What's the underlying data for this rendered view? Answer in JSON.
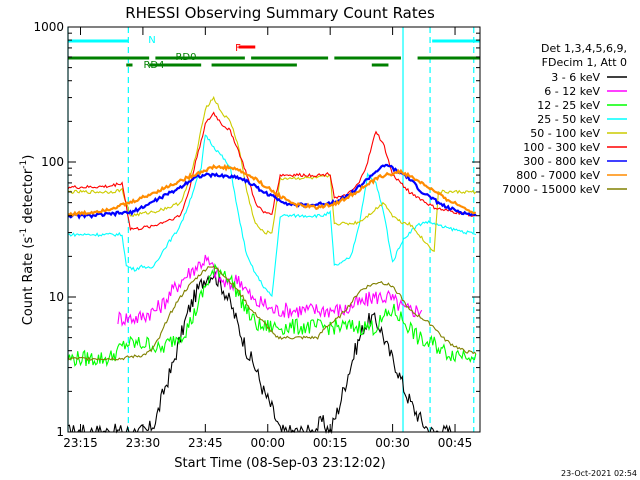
{
  "chart_data": {
    "type": "line",
    "title": "RHESSI Observing Summary Count Rates",
    "xlabel": "Start Time (08-Sep-03 23:12:02)",
    "ylabel_main": "Count Rate (s",
    "ylabel_sup1": "-1",
    "ylabel_mid": " detector",
    "ylabel_sup2": "-1",
    "ylabel_end": ")",
    "y_scale": "log",
    "ylim": [
      1,
      1000
    ],
    "xlim_minutes": [
      0,
      99
    ],
    "x_ticks": [
      {
        "t": 3,
        "label": "23:15"
      },
      {
        "t": 18,
        "label": "23:30"
      },
      {
        "t": 33,
        "label": "23:45"
      },
      {
        "t": 48,
        "label": "00:00"
      },
      {
        "t": 63,
        "label": "00:15"
      },
      {
        "t": 78,
        "label": "00:30"
      },
      {
        "t": 93,
        "label": "00:45"
      }
    ],
    "y_ticks": [
      {
        "v": 1,
        "label": "1"
      },
      {
        "v": 10,
        "label": "10"
      },
      {
        "v": 100,
        "label": "100"
      },
      {
        "v": 1000,
        "label": "1000"
      }
    ],
    "legend_header": [
      "Det 1,3,4,5,6,9,",
      "FDecim 1, Att 0"
    ],
    "legend_position": "right",
    "footer_date": "23-Oct-2021 02:54",
    "series": [
      {
        "name": "3 - 6 keV",
        "color": "#000000",
        "x": [
          0,
          19,
          21,
          23,
          25,
          27,
          29,
          31,
          33,
          35,
          37,
          39,
          41,
          43,
          45,
          47,
          49,
          51,
          53,
          55,
          57,
          59,
          61,
          63,
          65,
          67,
          69,
          71,
          73,
          75,
          77,
          79,
          81,
          83,
          85,
          87,
          89,
          91,
          92
        ],
        "y": [
          1,
          1,
          1.2,
          2,
          3,
          5,
          8,
          11,
          14,
          15,
          12,
          9,
          6,
          4,
          3,
          2,
          1.5,
          1,
          1,
          1,
          1,
          1,
          1.2,
          1,
          1.5,
          2.5,
          4,
          6,
          7,
          6,
          4,
          3,
          2,
          1.5,
          1.2,
          1,
          1,
          1,
          1
        ]
      },
      {
        "name": "6 - 12 keV",
        "color": "#ff00ff",
        "x": [
          12,
          13,
          15,
          17,
          19,
          21,
          23,
          25,
          27,
          29,
          31,
          33,
          35,
          37,
          39,
          41,
          43,
          45,
          47,
          49,
          51,
          53,
          55,
          57,
          59,
          61,
          63,
          65,
          67,
          69,
          71,
          73,
          75,
          77,
          79,
          81,
          83,
          85
        ],
        "y": [
          7,
          7,
          7,
          7,
          7.5,
          8,
          9,
          11,
          13,
          15,
          17,
          19,
          16,
          13,
          12,
          14,
          11,
          9,
          9,
          8,
          8,
          8,
          8,
          8,
          8,
          8,
          8,
          8,
          8,
          9,
          9,
          10,
          10,
          10,
          9,
          8,
          8,
          8
        ]
      },
      {
        "name": "12 - 25 keV",
        "color": "#00ff00",
        "x": [
          0,
          2,
          4,
          6,
          8,
          10,
          12,
          14,
          16,
          18,
          20,
          22,
          24,
          26,
          28,
          30,
          32,
          34,
          36,
          38,
          40,
          42,
          44,
          46,
          48,
          50,
          52,
          54,
          56,
          58,
          60,
          62,
          64,
          66,
          68,
          70,
          72,
          74,
          76,
          78,
          80,
          82,
          84,
          86,
          88,
          90,
          92,
          94,
          96,
          98
        ],
        "y": [
          3.5,
          3.5,
          3.5,
          3.5,
          3.5,
          3.5,
          4,
          4.5,
          4.5,
          4.5,
          4.5,
          4,
          4.5,
          5,
          5.5,
          7,
          10,
          14,
          16,
          15,
          12,
          9,
          7,
          6,
          6,
          6,
          6,
          6,
          6,
          6,
          6,
          6,
          6,
          6,
          6,
          6,
          6,
          6,
          7,
          8,
          7,
          6,
          5,
          4.5,
          4.5,
          4,
          3.8,
          3.8,
          3.8,
          3.8
        ]
      },
      {
        "name": "25 - 50 keV",
        "color": "#00ffff",
        "x": [
          0,
          5,
          10,
          13,
          14,
          16,
          18,
          20,
          22,
          24,
          26,
          28,
          30,
          32,
          33,
          35,
          37,
          39,
          41,
          43,
          45,
          47,
          49,
          51,
          53,
          55,
          57,
          59,
          61,
          63,
          64,
          66,
          68,
          70,
          72,
          74,
          76,
          78,
          80,
          82,
          84,
          86,
          88,
          90,
          92,
          94,
          96,
          98
        ],
        "y": [
          29,
          29,
          29,
          29,
          17,
          16,
          17,
          16,
          20,
          25,
          30,
          40,
          60,
          90,
          160,
          130,
          110,
          90,
          40,
          20,
          15,
          12,
          10,
          40,
          40,
          40,
          40,
          40,
          40,
          42,
          17,
          18,
          20,
          35,
          80,
          70,
          40,
          18,
          25,
          30,
          34,
          36,
          35,
          33,
          32,
          31,
          30,
          29
        ]
      },
      {
        "name": "50 - 100 keV",
        "color": "#cccc00",
        "x": [
          0,
          5,
          10,
          13,
          15,
          17,
          19,
          21,
          23,
          25,
          27,
          29,
          31,
          33,
          35,
          37,
          39,
          41,
          43,
          45,
          47,
          49,
          51,
          53,
          55,
          57,
          59,
          61,
          63,
          64,
          66,
          68,
          70,
          72,
          74,
          76,
          78,
          80,
          82,
          84,
          86,
          88,
          89,
          91,
          93,
          95,
          98
        ],
        "y": [
          60,
          60,
          60,
          62,
          40,
          41,
          42,
          43,
          45,
          47,
          50,
          70,
          120,
          250,
          300,
          230,
          200,
          130,
          60,
          35,
          30,
          30,
          75,
          76,
          76,
          76,
          76,
          77,
          78,
          35,
          35,
          35,
          36,
          40,
          45,
          50,
          40,
          36,
          35,
          30,
          25,
          22,
          60,
          60,
          60,
          60,
          60
        ]
      },
      {
        "name": "100 - 300 keV",
        "color": "#ff0000",
        "x": [
          0,
          5,
          10,
          13,
          15,
          17,
          19,
          21,
          23,
          25,
          27,
          29,
          31,
          33,
          35,
          37,
          39,
          41,
          43,
          45,
          47,
          49,
          51,
          53,
          55,
          57,
          59,
          61,
          63,
          64,
          66,
          68,
          70,
          72,
          74,
          76,
          78,
          80,
          82,
          84,
          86,
          88,
          90,
          92,
          94,
          96,
          98
        ],
        "y": [
          65,
          65,
          66,
          70,
          32,
          32,
          33,
          34,
          36,
          38,
          40,
          60,
          110,
          190,
          230,
          190,
          170,
          120,
          80,
          50,
          42,
          42,
          80,
          80,
          80,
          80,
          80,
          80,
          82,
          55,
          55,
          60,
          70,
          100,
          170,
          130,
          80,
          70,
          60,
          55,
          50,
          46,
          44,
          43,
          42,
          41,
          40
        ]
      },
      {
        "name": "300 - 800 keV",
        "color": "#0000ff",
        "x": [
          0,
          5,
          10,
          13,
          15,
          17,
          19,
          21,
          23,
          25,
          27,
          29,
          31,
          33,
          35,
          37,
          39,
          41,
          43,
          45,
          47,
          49,
          51,
          53,
          55,
          57,
          59,
          61,
          63,
          65,
          67,
          69,
          71,
          73,
          75,
          77,
          79,
          81,
          83,
          85,
          87,
          89,
          91,
          93,
          95,
          98
        ],
        "y": [
          40,
          40,
          41,
          42,
          42,
          45,
          48,
          52,
          56,
          60,
          65,
          72,
          78,
          80,
          80,
          79,
          78,
          77,
          72,
          66,
          60,
          56,
          52,
          49,
          48,
          48,
          48,
          49,
          50,
          52,
          56,
          62,
          70,
          80,
          90,
          95,
          85,
          80,
          70,
          60,
          55,
          50,
          46,
          44,
          42,
          40
        ]
      },
      {
        "name": "800 - 7000 keV",
        "color": "#ff8c00",
        "x": [
          0,
          5,
          10,
          15,
          20,
          25,
          30,
          35,
          40,
          45,
          50,
          55,
          60,
          65,
          70,
          75,
          80,
          85,
          90,
          95,
          98
        ],
        "y": [
          41,
          42,
          45,
          50,
          58,
          68,
          80,
          92,
          90,
          75,
          58,
          48,
          46,
          50,
          62,
          78,
          85,
          70,
          55,
          46,
          42
        ]
      },
      {
        "name": "7000 - 15000 keV",
        "color": "#808000",
        "x": [
          0,
          5,
          10,
          13,
          15,
          18,
          20,
          22,
          24,
          26,
          28,
          30,
          32,
          34,
          36,
          38,
          40,
          42,
          44,
          46,
          48,
          50,
          52,
          55,
          58,
          60,
          62,
          65,
          68,
          70,
          72,
          75,
          78,
          80,
          82,
          85,
          88,
          90,
          92,
          95,
          98
        ],
        "y": [
          3.5,
          3.5,
          3.5,
          3.5,
          3.6,
          3.7,
          4,
          5,
          7,
          9,
          11,
          13,
          15,
          17,
          16,
          14,
          12,
          10,
          8,
          7,
          6,
          5,
          5,
          5,
          5,
          5,
          6,
          7,
          9,
          11,
          12,
          13,
          12,
          10,
          8,
          7,
          6,
          5,
          4.5,
          4,
          3.8
        ]
      }
    ],
    "status_bars": [
      {
        "label": "N",
        "color": "#00ffff",
        "level": "upper",
        "segments": [
          [
            0,
            14.5
          ],
          [
            87.5,
            99
          ]
        ]
      },
      {
        "label": "F",
        "color": "#ff0000",
        "level": "flare",
        "segments": [
          [
            41,
            45
          ]
        ]
      },
      {
        "label": "RD0",
        "color": "#008000",
        "level": "rd0",
        "segments": [
          [
            0,
            19.5
          ],
          [
            21,
            42.5
          ],
          [
            44,
            62.5
          ],
          [
            64,
            80
          ],
          [
            84,
            99
          ]
        ]
      },
      {
        "label": "RD4",
        "color": "#008000",
        "level": "rd4",
        "segments": [
          [
            14,
            15.5
          ],
          [
            19.5,
            32
          ],
          [
            34.5,
            55
          ],
          [
            73,
            77
          ]
        ]
      }
    ],
    "vertical_lines": [
      {
        "t": 0,
        "color": "#00ffff",
        "style": "solid"
      },
      {
        "t": 14.5,
        "color": "#00ffff",
        "style": "dashed"
      },
      {
        "t": 80.5,
        "color": "#00ffff",
        "style": "solid"
      },
      {
        "t": 87,
        "color": "#00ffff",
        "style": "dashed"
      },
      {
        "t": 97.5,
        "color": "#00ffff",
        "style": "dashed"
      }
    ]
  }
}
